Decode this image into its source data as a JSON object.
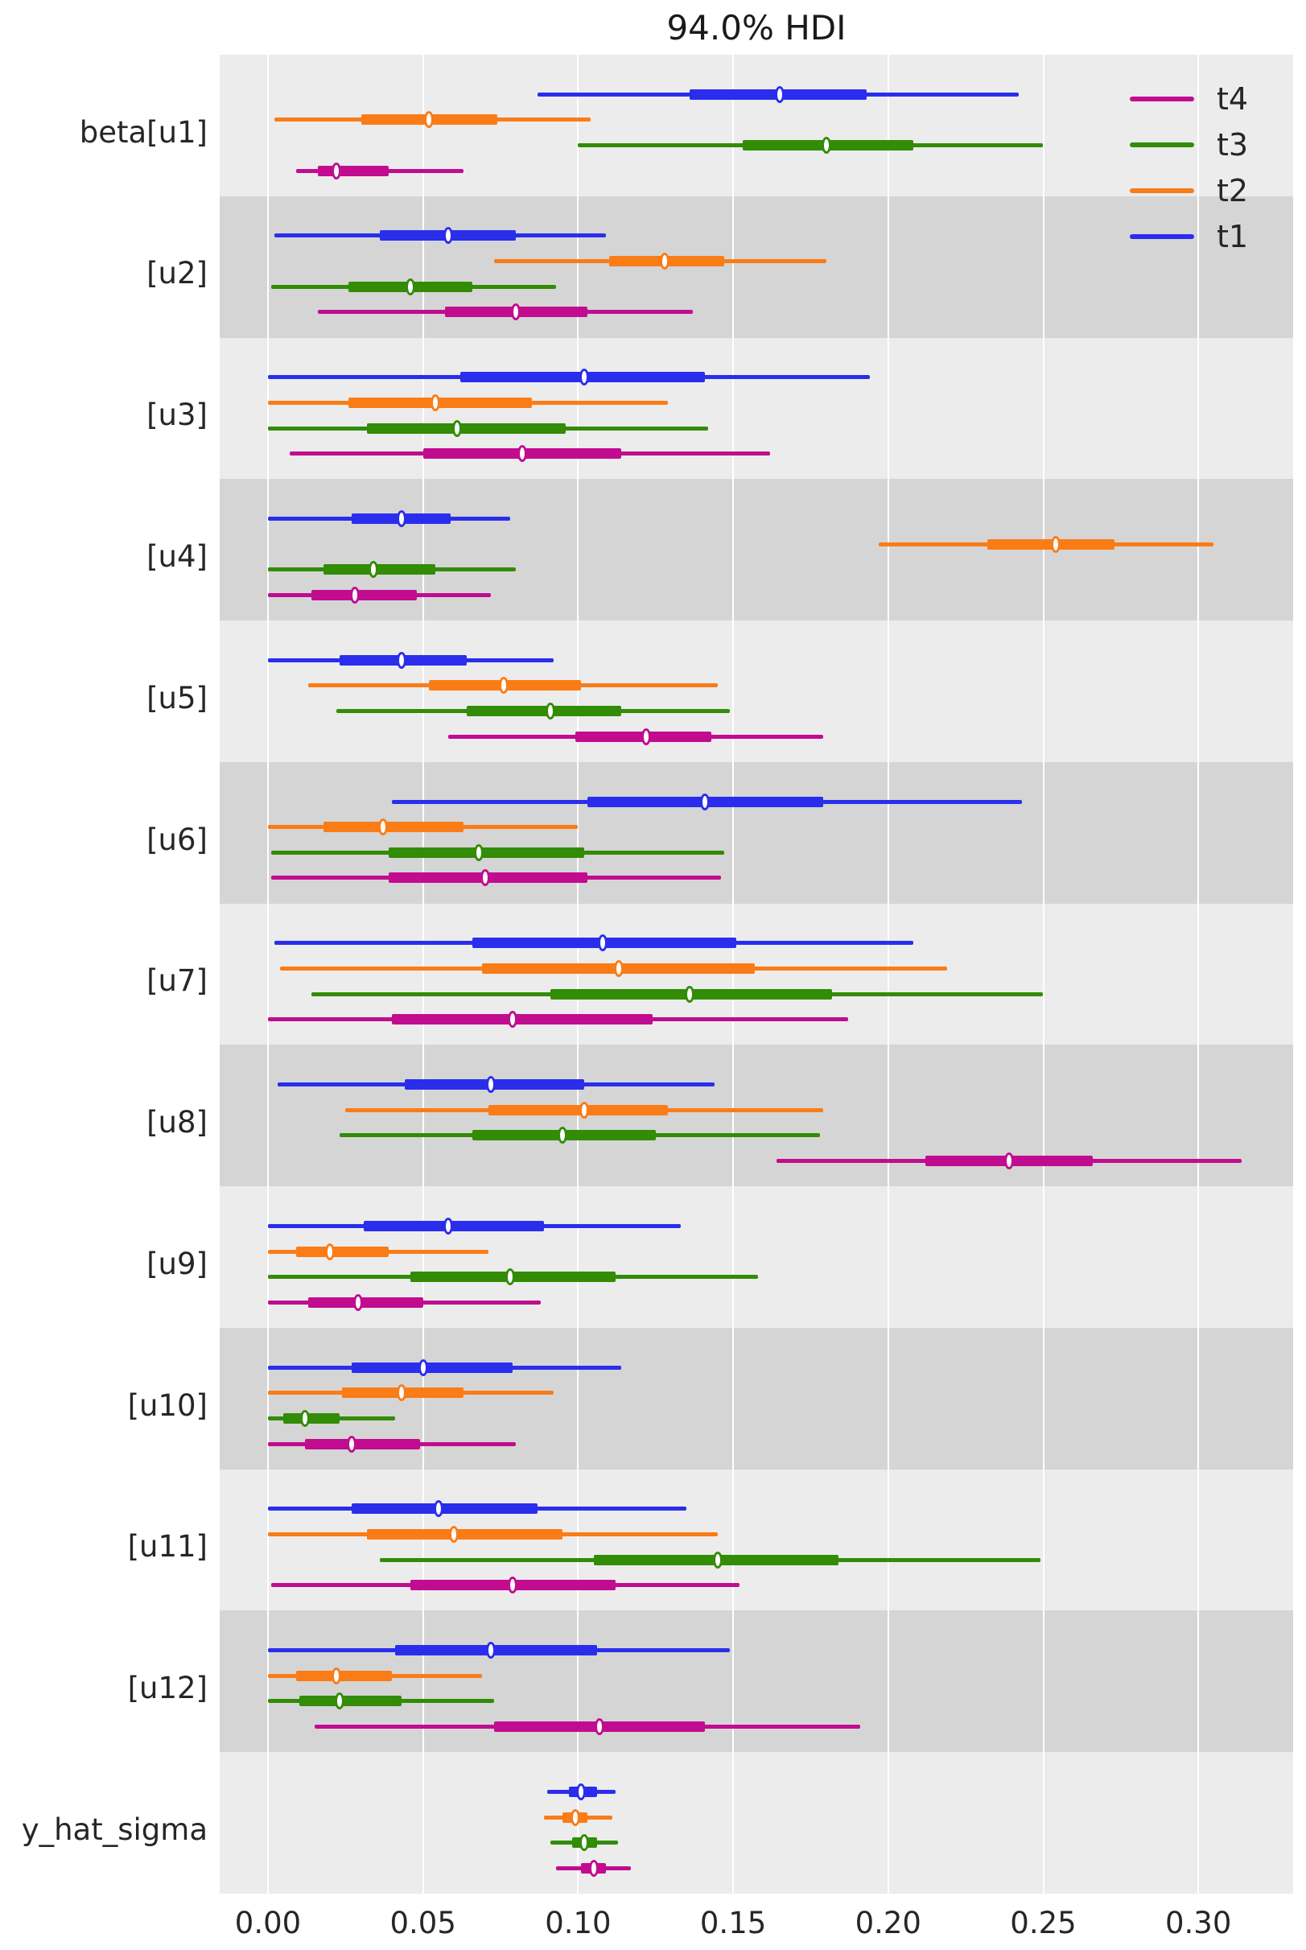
{
  "title": "94.0% HDI",
  "colors": {
    "t1": "#2a2eec",
    "t2": "#fa7c17",
    "t3": "#328c06",
    "t4": "#c10c90"
  },
  "background": {
    "plot_light": "#ececec",
    "plot_dark": "#d5d5d5",
    "gridline": "#ffffff"
  },
  "legend": [
    {
      "label": "t4",
      "color": "#c10c90"
    },
    {
      "label": "t3",
      "color": "#328c06"
    },
    {
      "label": "t2",
      "color": "#fa7c17"
    },
    {
      "label": "t1",
      "color": "#2a2eec"
    }
  ],
  "x_axis": {
    "tick_labels": [
      "0.00",
      "0.05",
      "0.10",
      "0.15",
      "0.20",
      "0.25",
      "0.30"
    ],
    "tick_values": [
      0.0,
      0.05,
      0.1,
      0.15,
      0.2,
      0.25,
      0.3
    ]
  },
  "chart_data": {
    "type": "forest",
    "title": "94.0% HDI",
    "hdi_probability": "94.0%",
    "xlim": [
      -0.016,
      0.331
    ],
    "x_ticks": [
      0.0,
      0.05,
      0.1,
      0.15,
      0.2,
      0.25,
      0.3
    ],
    "grid": "vertical-white-on-gray",
    "legend_position": "upper right",
    "legend_entries_top_to_bottom": [
      "t4",
      "t3",
      "t2",
      "t1"
    ],
    "note": "Each row shows 4 chains (t1 top to t4 bottom); values are [hdi_low, hdi_high] thin line, [thick_low, thick_high] thick line, and median point.",
    "rows": [
      {
        "label": "beta[u1]",
        "shaded": false,
        "chains": [
          {
            "chain": "t1",
            "hdi": [
              0.087,
              0.242
            ],
            "thick": [
              0.136,
              0.193
            ],
            "median": 0.165
          },
          {
            "chain": "t2",
            "hdi": [
              0.002,
              0.104
            ],
            "thick": [
              0.03,
              0.074
            ],
            "median": 0.052
          },
          {
            "chain": "t3",
            "hdi": [
              0.1,
              0.25
            ],
            "thick": [
              0.153,
              0.208
            ],
            "median": 0.18
          },
          {
            "chain": "t4",
            "hdi": [
              0.009,
              0.063
            ],
            "thick": [
              0.016,
              0.039
            ],
            "median": 0.022
          }
        ]
      },
      {
        "label": "[u2]",
        "shaded": true,
        "chains": [
          {
            "chain": "t1",
            "hdi": [
              0.002,
              0.109
            ],
            "thick": [
              0.036,
              0.08
            ],
            "median": 0.058
          },
          {
            "chain": "t2",
            "hdi": [
              0.073,
              0.18
            ],
            "thick": [
              0.11,
              0.147
            ],
            "median": 0.128
          },
          {
            "chain": "t3",
            "hdi": [
              0.001,
              0.093
            ],
            "thick": [
              0.026,
              0.066
            ],
            "median": 0.046
          },
          {
            "chain": "t4",
            "hdi": [
              0.016,
              0.137
            ],
            "thick": [
              0.057,
              0.103
            ],
            "median": 0.08
          }
        ]
      },
      {
        "label": "[u3]",
        "shaded": false,
        "chains": [
          {
            "chain": "t1",
            "hdi": [
              0.0,
              0.194
            ],
            "thick": [
              0.062,
              0.141
            ],
            "median": 0.102
          },
          {
            "chain": "t2",
            "hdi": [
              0.0,
              0.129
            ],
            "thick": [
              0.026,
              0.085
            ],
            "median": 0.054
          },
          {
            "chain": "t3",
            "hdi": [
              0.0,
              0.142
            ],
            "thick": [
              0.032,
              0.096
            ],
            "median": 0.061
          },
          {
            "chain": "t4",
            "hdi": [
              0.007,
              0.162
            ],
            "thick": [
              0.05,
              0.114
            ],
            "median": 0.082
          }
        ]
      },
      {
        "label": "[u4]",
        "shaded": true,
        "chains": [
          {
            "chain": "t1",
            "hdi": [
              0.0,
              0.078
            ],
            "thick": [
              0.027,
              0.059
            ],
            "median": 0.043
          },
          {
            "chain": "t2",
            "hdi": [
              0.197,
              0.305
            ],
            "thick": [
              0.232,
              0.273
            ],
            "median": 0.254
          },
          {
            "chain": "t3",
            "hdi": [
              0.0,
              0.08
            ],
            "thick": [
              0.018,
              0.054
            ],
            "median": 0.034
          },
          {
            "chain": "t4",
            "hdi": [
              0.0,
              0.072
            ],
            "thick": [
              0.014,
              0.048
            ],
            "median": 0.028
          }
        ]
      },
      {
        "label": "[u5]",
        "shaded": false,
        "chains": [
          {
            "chain": "t1",
            "hdi": [
              0.0,
              0.092
            ],
            "thick": [
              0.023,
              0.064
            ],
            "median": 0.043
          },
          {
            "chain": "t2",
            "hdi": [
              0.013,
              0.145
            ],
            "thick": [
              0.052,
              0.101
            ],
            "median": 0.076
          },
          {
            "chain": "t3",
            "hdi": [
              0.022,
              0.149
            ],
            "thick": [
              0.064,
              0.114
            ],
            "median": 0.091
          },
          {
            "chain": "t4",
            "hdi": [
              0.058,
              0.179
            ],
            "thick": [
              0.099,
              0.143
            ],
            "median": 0.122
          }
        ]
      },
      {
        "label": "[u6]",
        "shaded": true,
        "chains": [
          {
            "chain": "t1",
            "hdi": [
              0.04,
              0.243
            ],
            "thick": [
              0.103,
              0.179
            ],
            "median": 0.141
          },
          {
            "chain": "t2",
            "hdi": [
              0.0,
              0.1
            ],
            "thick": [
              0.018,
              0.063
            ],
            "median": 0.037
          },
          {
            "chain": "t3",
            "hdi": [
              0.001,
              0.147
            ],
            "thick": [
              0.039,
              0.102
            ],
            "median": 0.068
          },
          {
            "chain": "t4",
            "hdi": [
              0.001,
              0.146
            ],
            "thick": [
              0.039,
              0.103
            ],
            "median": 0.07
          }
        ]
      },
      {
        "label": "[u7]",
        "shaded": false,
        "chains": [
          {
            "chain": "t1",
            "hdi": [
              0.002,
              0.208
            ],
            "thick": [
              0.066,
              0.151
            ],
            "median": 0.108
          },
          {
            "chain": "t2",
            "hdi": [
              0.004,
              0.219
            ],
            "thick": [
              0.069,
              0.157
            ],
            "median": 0.113
          },
          {
            "chain": "t3",
            "hdi": [
              0.014,
              0.25
            ],
            "thick": [
              0.091,
              0.182
            ],
            "median": 0.136
          },
          {
            "chain": "t4",
            "hdi": [
              0.0,
              0.187
            ],
            "thick": [
              0.04,
              0.124
            ],
            "median": 0.079
          }
        ]
      },
      {
        "label": "[u8]",
        "shaded": true,
        "chains": [
          {
            "chain": "t1",
            "hdi": [
              0.003,
              0.144
            ],
            "thick": [
              0.044,
              0.102
            ],
            "median": 0.072
          },
          {
            "chain": "t2",
            "hdi": [
              0.025,
              0.179
            ],
            "thick": [
              0.071,
              0.129
            ],
            "median": 0.102
          },
          {
            "chain": "t3",
            "hdi": [
              0.023,
              0.178
            ],
            "thick": [
              0.066,
              0.125
            ],
            "median": 0.095
          },
          {
            "chain": "t4",
            "hdi": [
              0.164,
              0.314
            ],
            "thick": [
              0.212,
              0.266
            ],
            "median": 0.239
          }
        ]
      },
      {
        "label": "[u9]",
        "shaded": false,
        "chains": [
          {
            "chain": "t1",
            "hdi": [
              0.0,
              0.133
            ],
            "thick": [
              0.031,
              0.089
            ],
            "median": 0.058
          },
          {
            "chain": "t2",
            "hdi": [
              0.0,
              0.071
            ],
            "thick": [
              0.009,
              0.039
            ],
            "median": 0.02
          },
          {
            "chain": "t3",
            "hdi": [
              0.0,
              0.158
            ],
            "thick": [
              0.046,
              0.112
            ],
            "median": 0.078
          },
          {
            "chain": "t4",
            "hdi": [
              0.0,
              0.088
            ],
            "thick": [
              0.013,
              0.05
            ],
            "median": 0.029
          }
        ]
      },
      {
        "label": "[u10]",
        "shaded": true,
        "chains": [
          {
            "chain": "t1",
            "hdi": [
              0.0,
              0.114
            ],
            "thick": [
              0.027,
              0.079
            ],
            "median": 0.05
          },
          {
            "chain": "t2",
            "hdi": [
              0.0,
              0.092
            ],
            "thick": [
              0.024,
              0.063
            ],
            "median": 0.043
          },
          {
            "chain": "t3",
            "hdi": [
              0.0,
              0.041
            ],
            "thick": [
              0.005,
              0.023
            ],
            "median": 0.012
          },
          {
            "chain": "t4",
            "hdi": [
              0.0,
              0.08
            ],
            "thick": [
              0.012,
              0.049
            ],
            "median": 0.027
          }
        ]
      },
      {
        "label": "[u11]",
        "shaded": false,
        "chains": [
          {
            "chain": "t1",
            "hdi": [
              0.0,
              0.135
            ],
            "thick": [
              0.027,
              0.087
            ],
            "median": 0.055
          },
          {
            "chain": "t2",
            "hdi": [
              0.0,
              0.145
            ],
            "thick": [
              0.032,
              0.095
            ],
            "median": 0.06
          },
          {
            "chain": "t3",
            "hdi": [
              0.036,
              0.249
            ],
            "thick": [
              0.105,
              0.184
            ],
            "median": 0.145
          },
          {
            "chain": "t4",
            "hdi": [
              0.001,
              0.152
            ],
            "thick": [
              0.046,
              0.112
            ],
            "median": 0.079
          }
        ]
      },
      {
        "label": "[u12]",
        "shaded": true,
        "chains": [
          {
            "chain": "t1",
            "hdi": [
              0.0,
              0.149
            ],
            "thick": [
              0.041,
              0.106
            ],
            "median": 0.072
          },
          {
            "chain": "t2",
            "hdi": [
              0.0,
              0.069
            ],
            "thick": [
              0.009,
              0.04
            ],
            "median": 0.022
          },
          {
            "chain": "t3",
            "hdi": [
              0.0,
              0.073
            ],
            "thick": [
              0.01,
              0.043
            ],
            "median": 0.023
          },
          {
            "chain": "t4",
            "hdi": [
              0.015,
              0.191
            ],
            "thick": [
              0.073,
              0.141
            ],
            "median": 0.107
          }
        ]
      },
      {
        "label": "y_hat_sigma",
        "shaded": false,
        "chains": [
          {
            "chain": "t1",
            "hdi": [
              0.09,
              0.112
            ],
            "thick": [
              0.097,
              0.106
            ],
            "median": 0.101
          },
          {
            "chain": "t2",
            "hdi": [
              0.089,
              0.111
            ],
            "thick": [
              0.095,
              0.103
            ],
            "median": 0.099
          },
          {
            "chain": "t3",
            "hdi": [
              0.091,
              0.113
            ],
            "thick": [
              0.098,
              0.106
            ],
            "median": 0.102
          },
          {
            "chain": "t4",
            "hdi": [
              0.093,
              0.117
            ],
            "thick": [
              0.101,
              0.109
            ],
            "median": 0.105
          }
        ]
      }
    ]
  }
}
